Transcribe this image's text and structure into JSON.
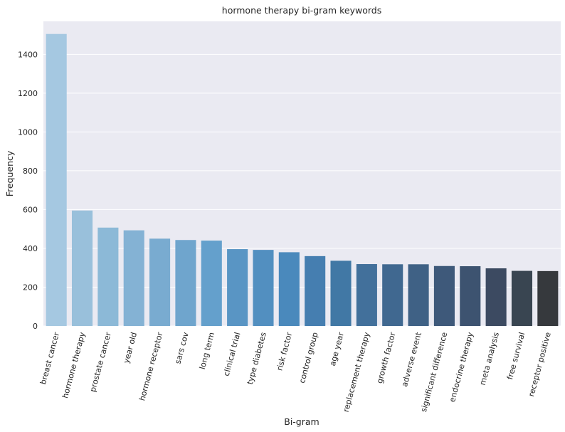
{
  "chart_data": {
    "type": "bar",
    "title": "hormone therapy bi-gram keywords",
    "xlabel": "Bi-gram",
    "ylabel": "Frequency",
    "ylim": [
      0,
      1570
    ],
    "yticks": [
      0,
      200,
      400,
      600,
      800,
      1000,
      1200,
      1400
    ],
    "grid": true,
    "legend": "none",
    "background_color": "#eaeaf2",
    "grid_color": "#ffffff",
    "categories": [
      "breast cancer",
      "hormone therapy",
      "prostate cancer",
      "year old",
      "hormone receptor",
      "sars cov",
      "long term",
      "clinical trial",
      "type diabetes",
      "risk factor",
      "control group",
      "age year",
      "replacement therapy",
      "growth factor",
      "adverse event",
      "significant difference",
      "endocrine therapy",
      "meta analysis",
      "free survival",
      "receptor positive"
    ],
    "values": [
      1505,
      595,
      507,
      493,
      450,
      443,
      440,
      396,
      392,
      380,
      360,
      336,
      319,
      318,
      318,
      309,
      308,
      297,
      284,
      283
    ],
    "colors": [
      "#a5c8e1",
      "#99c0db",
      "#8cb9d7",
      "#84b2d4",
      "#79abd0",
      "#6fa5cd",
      "#64a0cc",
      "#5995c4",
      "#528fc0",
      "#4a89bc",
      "#457eb0",
      "#4178a5",
      "#42709b",
      "#406890",
      "#3f6185",
      "#3e597a",
      "#3d5370",
      "#3c4a61",
      "#394551",
      "#36393d"
    ]
  }
}
